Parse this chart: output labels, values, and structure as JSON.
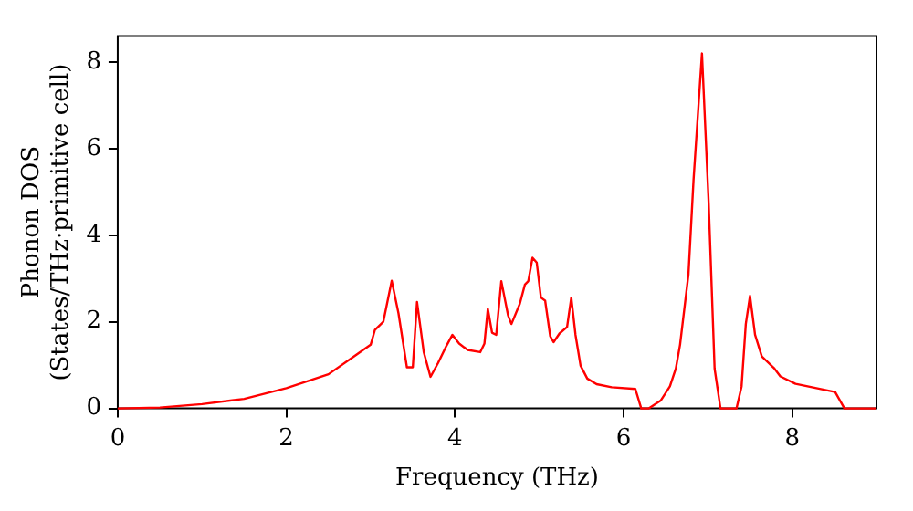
{
  "chart_data": {
    "type": "line",
    "xlabel": "Frequency (THz)",
    "ylabel": "Phonon DOS\n(States/THz·primitive cell)",
    "xlim": [
      0,
      9
    ],
    "xticks": [
      0,
      2,
      4,
      6,
      8
    ],
    "ylim": [
      0,
      8.6
    ],
    "yticks": [
      0,
      2,
      4,
      6,
      8
    ],
    "grid": false,
    "legend": false,
    "marker": "none",
    "line_style": "solid",
    "series": [
      {
        "color": "#ff0000",
        "x": [
          0,
          0.5,
          1,
          1.5,
          2,
          2.5,
          2.8,
          3.0,
          3.05,
          3.15,
          3.25,
          3.33,
          3.43,
          3.5,
          3.55,
          3.63,
          3.71,
          3.8,
          3.9,
          3.97,
          4.05,
          4.15,
          4.3,
          4.35,
          4.39,
          4.44,
          4.49,
          4.55,
          4.63,
          4.67,
          4.77,
          4.83,
          4.87,
          4.92,
          4.97,
          5.02,
          5.07,
          5.13,
          5.17,
          5.24,
          5.33,
          5.38,
          5.43,
          5.49,
          5.57,
          5.68,
          5.86,
          6.14,
          6.21,
          6.3,
          6.44,
          6.55,
          6.62,
          6.67,
          6.77,
          6.83,
          6.93,
          7.01,
          7.08,
          7.15,
          7.34,
          7.4,
          7.45,
          7.5,
          7.56,
          7.64,
          7.79,
          7.86,
          8.04,
          8.51,
          8.62,
          9
        ],
        "values": [
          0,
          0.02,
          0.1,
          0.22,
          0.47,
          0.79,
          1.2,
          1.47,
          1.81,
          2.0,
          2.95,
          2.2,
          0.95,
          0.95,
          2.46,
          1.3,
          0.73,
          1.05,
          1.45,
          1.7,
          1.5,
          1.35,
          1.3,
          1.5,
          2.3,
          1.75,
          1.7,
          2.94,
          2.15,
          1.95,
          2.42,
          2.86,
          2.94,
          3.48,
          3.37,
          2.56,
          2.49,
          1.67,
          1.53,
          1.73,
          1.88,
          2.56,
          1.7,
          0.99,
          0.69,
          0.56,
          0.49,
          0.45,
          0,
          0,
          0.18,
          0.51,
          0.92,
          1.47,
          3.1,
          5.28,
          8.2,
          4.73,
          0.92,
          0,
          0,
          0.51,
          1.95,
          2.6,
          1.7,
          1.2,
          0.92,
          0.74,
          0.57,
          0.38,
          0,
          0
        ]
      }
    ]
  }
}
